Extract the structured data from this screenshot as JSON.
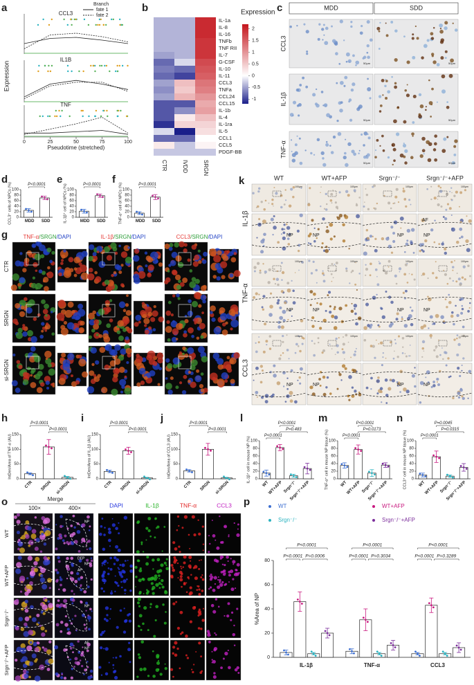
{
  "panels": {
    "a": {
      "label": "a",
      "y_label": "Expression",
      "x_label": "Pseudotime (stretched)",
      "legend_title": "Branch",
      "series": [
        {
          "name": "fate 1",
          "color": "#222"
        },
        {
          "name": "fate 2",
          "color": "#222"
        }
      ],
      "x": [
        0,
        25,
        50,
        75,
        100
      ],
      "xlim": [
        0,
        100
      ],
      "xticks": [
        0,
        25,
        50,
        75,
        100
      ],
      "ylim": [
        0,
        1
      ],
      "genes": [
        {
          "name": "CCL3",
          "fate1": [
            0.3,
            0.45,
            0.48,
            0.4,
            0.3
          ],
          "fate2": [
            0.15,
            0.55,
            0.6,
            0.5,
            0.35
          ]
        },
        {
          "name": "IL1B",
          "fate1": [
            0.15,
            0.5,
            0.6,
            0.5,
            0.35
          ],
          "fate2": [
            0.1,
            0.45,
            0.55,
            0.55,
            0.3
          ]
        },
        {
          "name": "TNF",
          "fate1": [
            0.15,
            0.15,
            0.2,
            0.25,
            0.1
          ],
          "fate2": [
            0.1,
            0.3,
            0.5,
            0.75,
            0.15
          ]
        }
      ]
    },
    "b": {
      "label": "b",
      "legend_title": "Expression",
      "columns": [
        "CTR",
        "IVDD",
        "SRGN"
      ],
      "clim": [
        -1.2,
        2.2
      ],
      "cticks": [
        2,
        1.5,
        1,
        0.5,
        0,
        -0.5,
        -1
      ],
      "rows": [
        "IL-1a",
        "IL-8",
        "IL-16",
        "TNFb",
        "TNF RII",
        "IL-7",
        "G-CSF",
        "IL-10",
        "IL-11",
        "CCL3",
        "TNFa",
        "CCL24",
        "CCL15",
        "IL-1b",
        "IL-4",
        "IL-1ra",
        "IL-5",
        "CCL1",
        "CCL5",
        "PDGF-BB"
      ],
      "values": [
        [
          -0.4,
          -0.4,
          2
        ],
        [
          -0.4,
          -0.4,
          2
        ],
        [
          -0.4,
          -0.4,
          2
        ],
        [
          -0.4,
          -0.4,
          1.9
        ],
        [
          -0.4,
          -0.4,
          1.9
        ],
        [
          -0.5,
          -0.4,
          1.9
        ],
        [
          -0.8,
          -0.2,
          1.7
        ],
        [
          -0.7,
          -0.8,
          1.6
        ],
        [
          -0.8,
          -1,
          1.5
        ],
        [
          -0.5,
          0.6,
          1.3
        ],
        [
          -0.6,
          0.5,
          1.2
        ],
        [
          -0.5,
          0.7,
          1
        ],
        [
          -0.9,
          -0.9,
          0.8
        ],
        [
          -0.9,
          -0.6,
          0.9
        ],
        [
          -0.9,
          0.2,
          0.6
        ],
        [
          -1.1,
          0.4,
          0.4
        ],
        [
          -0.2,
          -1.2,
          0.3
        ],
        [
          -0.8,
          -0.8,
          0
        ],
        [
          0.2,
          -0.3,
          0.1
        ],
        [
          -0.3,
          -0.3,
          -0.3
        ]
      ]
    },
    "c": {
      "label": "c",
      "columns": [
        "MDD",
        "SDD"
      ],
      "rows": [
        "CCL3",
        "IL-1β",
        "TNF-α"
      ],
      "scale": "50μm"
    },
    "d": {
      "label": "d",
      "y_label": "CCL3⁺ cells of NPCs (%)",
      "categories": [
        "MDD",
        "SDD"
      ],
      "colors": [
        "#3d6fd1",
        "#b8338f"
      ],
      "values": [
        25,
        70
      ],
      "errors": [
        6,
        6
      ],
      "ylim": [
        0,
        100
      ],
      "yticks": [
        0,
        20,
        40,
        60,
        80,
        100
      ],
      "pvalues": [
        "P<0.0001"
      ]
    },
    "e": {
      "label": "e",
      "y_label": "IL-1β⁺ cell of NPCs (%)",
      "categories": [
        "MDD",
        "SDD"
      ],
      "colors": [
        "#3d6fd1",
        "#b8338f"
      ],
      "values": [
        22,
        78
      ],
      "errors": [
        7,
        6
      ],
      "ylim": [
        0,
        100
      ],
      "yticks": [
        0,
        20,
        40,
        60,
        80,
        100
      ],
      "pvalues": [
        "P<0.0001"
      ]
    },
    "f": {
      "label": "f",
      "y_label": "TNF-α⁺ cell of NPCs (%)",
      "categories": [
        "MDD",
        "SDD"
      ],
      "colors": [
        "#3d6fd1",
        "#b8338f"
      ],
      "values": [
        15,
        73
      ],
      "errors": [
        5,
        9
      ],
      "ylim": [
        0,
        100
      ],
      "yticks": [
        0,
        20,
        40,
        60,
        80,
        100
      ],
      "pvalues": [
        "P<0.0001"
      ]
    },
    "g": {
      "label": "g",
      "rows": [
        "CTR",
        "SRGN",
        "si-SRGN"
      ],
      "headers": [
        {
          "parts": [
            "TNF-α",
            "/SRGN",
            "/DAPI"
          ]
        },
        {
          "parts": [
            "IL-1β",
            "/SRGN",
            "/DAPI"
          ]
        },
        {
          "parts": [
            "CCL3",
            "/SRGN",
            "/DAPI"
          ]
        }
      ],
      "part_colors": [
        "#e53935",
        "#2e9e3a",
        "#1e3fc4"
      ]
    },
    "h": {
      "label": "h",
      "y_label": "IntDen/Area of TNF-α (AU)",
      "categories": [
        "CTR",
        "SRGN",
        "si-SRGN"
      ],
      "colors": [
        "#3d6fd1",
        "#c8197f",
        "#2bb3c0"
      ],
      "values": [
        17,
        108,
        5
      ],
      "errors": [
        3,
        25,
        3
      ],
      "ylim": [
        0,
        150
      ],
      "yticks": [
        0,
        50,
        100,
        150
      ],
      "pvalues": [
        "P<0.0001",
        "P<0.0001"
      ]
    },
    "i": {
      "label": "i",
      "y_label": "IntDen/Area of IL-1β (AU)",
      "categories": [
        "CTR",
        "SRGN",
        "si-SRGN"
      ],
      "colors": [
        "#3d6fd1",
        "#c8197f",
        "#2bb3c0"
      ],
      "values": [
        25,
        95,
        3
      ],
      "errors": [
        4,
        12,
        2
      ],
      "ylim": [
        0,
        150
      ],
      "yticks": [
        0,
        50,
        100,
        150
      ],
      "pvalues": [
        "P<0.0001",
        "P<0.0001"
      ]
    },
    "j": {
      "label": "j",
      "y_label": "IntDen/Area of CCL3 (AU)",
      "categories": [
        "CTR",
        "SRGN",
        "si-SRGN"
      ],
      "colors": [
        "#3d6fd1",
        "#c8197f",
        "#2bb3c0"
      ],
      "values": [
        27,
        100,
        3
      ],
      "errors": [
        4,
        20,
        2
      ],
      "ylim": [
        0,
        150
      ],
      "yticks": [
        0,
        50,
        100,
        150
      ],
      "pvalues": [
        "P<0.0001",
        "P<0.0001"
      ]
    },
    "k": {
      "label": "k",
      "columns": [
        "WT",
        "WT+AFP",
        "Srgn⁻/⁻",
        "Srgn⁻/⁻+AFP"
      ],
      "rows": [
        "IL-1β",
        "TNF-α",
        "CCL3"
      ],
      "np": "NP",
      "af": "AF",
      "scale": "100μm"
    },
    "l": {
      "label": "l",
      "y_label": "IL-1β⁺ cell in mouse NP (%)",
      "categories": [
        "WT",
        "WT+AFP",
        "Srgn⁻/⁻",
        "Srgn⁻/⁻+AFP"
      ],
      "colors": [
        "#3d6fd1",
        "#c8197f",
        "#2bb3c0",
        "#7b2d9b"
      ],
      "values": [
        15,
        82,
        8,
        27
      ],
      "errors": [
        8,
        8,
        4,
        14
      ],
      "ylim": [
        0,
        100
      ],
      "yticks": [
        0,
        20,
        40,
        60,
        80,
        100
      ],
      "pvalues": [
        "P<0.0001",
        "P=0.483",
        "P<0.0001"
      ]
    },
    "m": {
      "label": "m",
      "y_label": "TNF-α⁺ cell in mouse NP tissue (%)",
      "categories": [
        "WT",
        "WT+AFP",
        "Srgn⁻/⁻",
        "Srgn⁻/⁻+AFP"
      ],
      "colors": [
        "#3d6fd1",
        "#c8197f",
        "#2bb3c0",
        "#7b2d9b"
      ],
      "values": [
        35,
        77,
        15,
        36
      ],
      "errors": [
        7,
        12,
        9,
        6
      ],
      "ylim": [
        0,
        100
      ],
      "yticks": [
        0,
        20,
        40,
        60,
        80,
        100
      ],
      "pvalues": [
        "P<0.0001",
        "P=0.0173",
        "P<0.0001"
      ]
    },
    "n": {
      "label": "n",
      "y_label": "CCL3⁺ cell in mouse NP tissue (%)",
      "categories": [
        "WT",
        "WT+AFP",
        "Srgn⁻/⁻",
        "Srgn⁻/⁻+AFP"
      ],
      "colors": [
        "#3d6fd1",
        "#c8197f",
        "#2bb3c0",
        "#7b2d9b"
      ],
      "values": [
        10,
        58,
        7,
        30
      ],
      "errors": [
        5,
        15,
        3,
        10
      ],
      "ylim": [
        0,
        100
      ],
      "yticks": [
        0,
        20,
        40,
        60,
        80,
        100
      ],
      "pvalues": [
        "P<0.0001",
        "P=0.0315",
        "P=0.0045"
      ]
    },
    "o": {
      "label": "o",
      "merge": "Merge",
      "zooms": [
        "100×",
        "400×"
      ],
      "channels": [
        "DAPI",
        "IL-1β",
        "TNF-α",
        "CCL3"
      ],
      "channel_colors": [
        "#2233dd",
        "#20b020",
        "#e02020",
        "#c020c0"
      ],
      "rows": [
        "WT",
        "WT+AFP",
        "Srgn⁻/⁻",
        "Srgn⁻/⁻+AFP"
      ],
      "np": "NP",
      "af": "AF",
      "dep": "DEP"
    },
    "p": {
      "label": "p",
      "y_label": "%Area of NP",
      "groups": [
        "IL-1β",
        "TNF-α",
        "CCL3"
      ],
      "ylim": [
        0,
        80
      ],
      "yticks": [
        0,
        20,
        40,
        60,
        80
      ],
      "series": [
        {
          "name": "WT",
          "color": "#3d6fd1",
          "values": [
            4,
            5,
            3
          ],
          "errors": [
            2,
            2,
            1
          ]
        },
        {
          "name": "WT+AFP",
          "color": "#c8197f",
          "values": [
            46,
            31,
            43
          ],
          "errors": [
            8,
            9,
            6
          ]
        },
        {
          "name": "Srgn⁻/⁻",
          "color": "#2bb3c0",
          "values": [
            3,
            3,
            3
          ],
          "errors": [
            1,
            1,
            1
          ]
        },
        {
          "name": "Srgn⁻/⁻+AFP",
          "color": "#7b2d9b",
          "values": [
            20,
            10,
            8
          ],
          "errors": [
            4,
            4,
            4
          ]
        }
      ],
      "pvalues": [
        [
          "P<0.0001",
          "P=0.0006",
          "P<0.0001"
        ],
        [
          "P<0.0001",
          "P=0.3034",
          "P<0.0001"
        ],
        [
          "P<0.0001",
          "P=0.3289",
          "P<0.0001"
        ]
      ]
    }
  }
}
